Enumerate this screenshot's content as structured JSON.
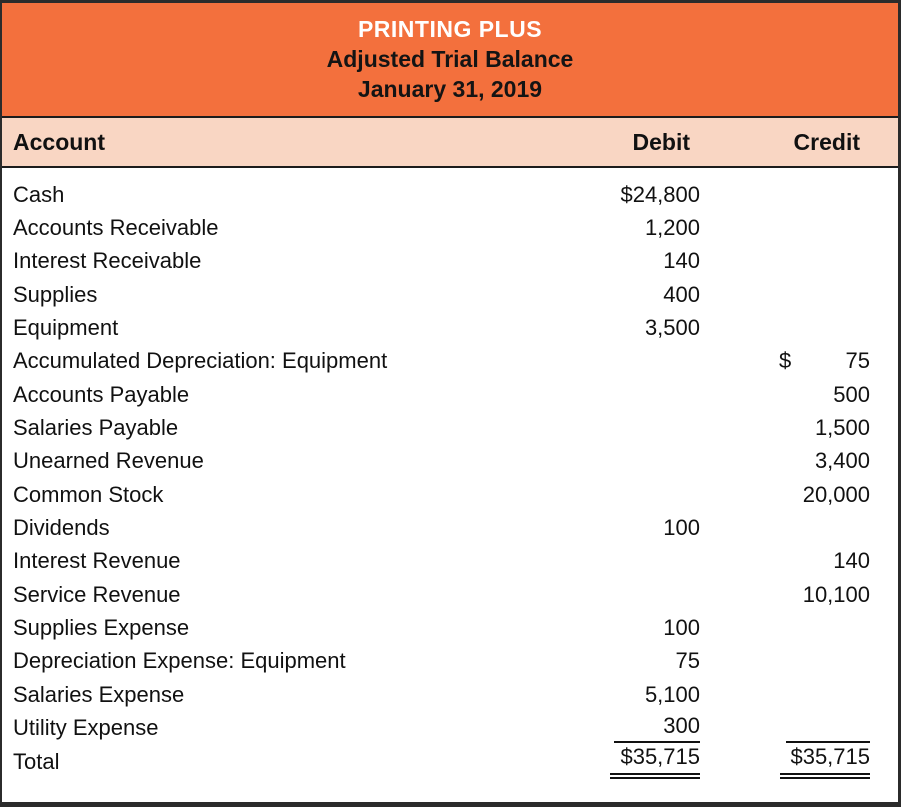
{
  "title_block": {
    "company": "PRINTING PLUS",
    "statement": "Adjusted Trial Balance",
    "date": "January 31, 2019"
  },
  "column_headers": {
    "account": "Account",
    "debit": "Debit",
    "credit": "Credit"
  },
  "rows": [
    {
      "name": "Cash",
      "debit": "$24,800",
      "credit": ""
    },
    {
      "name": "Accounts Receivable",
      "debit": "1,200",
      "credit": ""
    },
    {
      "name": "Interest Receivable",
      "debit": "140",
      "credit": ""
    },
    {
      "name": "Supplies",
      "debit": "400",
      "credit": ""
    },
    {
      "name": "Equipment",
      "debit": "3,500",
      "credit": ""
    },
    {
      "name": "Accumulated Depreciation: Equipment",
      "debit": "",
      "credit": "75",
      "credit_currency": "$"
    },
    {
      "name": "Accounts Payable",
      "debit": "",
      "credit": "500"
    },
    {
      "name": "Salaries Payable",
      "debit": "",
      "credit": "1,500"
    },
    {
      "name": "Unearned Revenue",
      "debit": "",
      "credit": "3,400"
    },
    {
      "name": "Common Stock",
      "debit": "",
      "credit": "20,000"
    },
    {
      "name": "Dividends",
      "debit": "100",
      "credit": ""
    },
    {
      "name": "Interest Revenue",
      "debit": "",
      "credit": "140"
    },
    {
      "name": "Service Revenue",
      "debit": "",
      "credit": "10,100"
    },
    {
      "name": "Supplies Expense",
      "debit": "100",
      "credit": ""
    },
    {
      "name": "Depreciation Expense: Equipment",
      "debit": "75",
      "credit": ""
    },
    {
      "name": "Salaries Expense",
      "debit": "5,100",
      "credit": ""
    },
    {
      "name": "Utility Expense",
      "debit": "300",
      "credit": ""
    }
  ],
  "total_row": {
    "name": "Total",
    "debit": "$35,715",
    "credit": "$35,715"
  },
  "colors": {
    "header_bg": "#F3703D",
    "subheader_bg": "#F9D6C3",
    "border": "#2B2B2B",
    "company_text": "#FFFFFF",
    "body_text": "#111111"
  }
}
